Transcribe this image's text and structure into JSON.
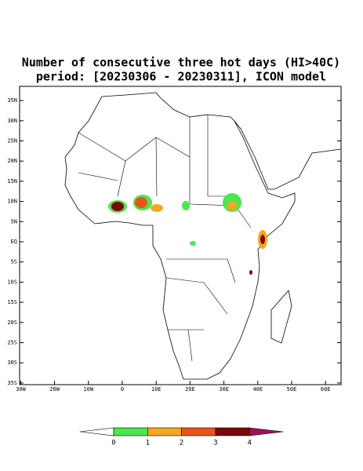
{
  "title": [
    "Number of consecutive three hot days (HI>40C)",
    "period: [20230306 - 20230311], ICON model"
  ],
  "lat_ticks": [
    {
      "value": 35,
      "label": "35N"
    },
    {
      "value": 30,
      "label": "30N"
    },
    {
      "value": 25,
      "label": "25N"
    },
    {
      "value": 20,
      "label": "20N"
    },
    {
      "value": 15,
      "label": "15N"
    },
    {
      "value": 10,
      "label": "10N"
    },
    {
      "value": 5,
      "label": "5N"
    },
    {
      "value": 0,
      "label": "EQ"
    },
    {
      "value": -5,
      "label": "5S"
    },
    {
      "value": -10,
      "label": "10S"
    },
    {
      "value": -15,
      "label": "15S"
    },
    {
      "value": -20,
      "label": "20S"
    },
    {
      "value": -25,
      "label": "25S"
    },
    {
      "value": -30,
      "label": "30S"
    },
    {
      "value": -35,
      "label": "35S"
    }
  ],
  "lon_ticks": [
    {
      "value": -30,
      "label": "30W"
    },
    {
      "value": -20,
      "label": "20W"
    },
    {
      "value": -10,
      "label": "10W"
    },
    0,
    {
      "value": 10,
      "label": "10E"
    },
    {
      "value": 20,
      "label": "20E"
    },
    {
      "value": 30,
      "label": "30E"
    },
    {
      "value": 40,
      "label": "40E"
    },
    {
      "value": 50,
      "label": "50E"
    },
    {
      "value": 60,
      "label": "60E"
    }
  ],
  "colorbar": {
    "levels": [
      0,
      1,
      2,
      3,
      4
    ],
    "colors": [
      "#ffffff",
      "#4de64d",
      "#f5a623",
      "#e8541a",
      "#7a0a0a",
      "#a0105a"
    ]
  }
}
